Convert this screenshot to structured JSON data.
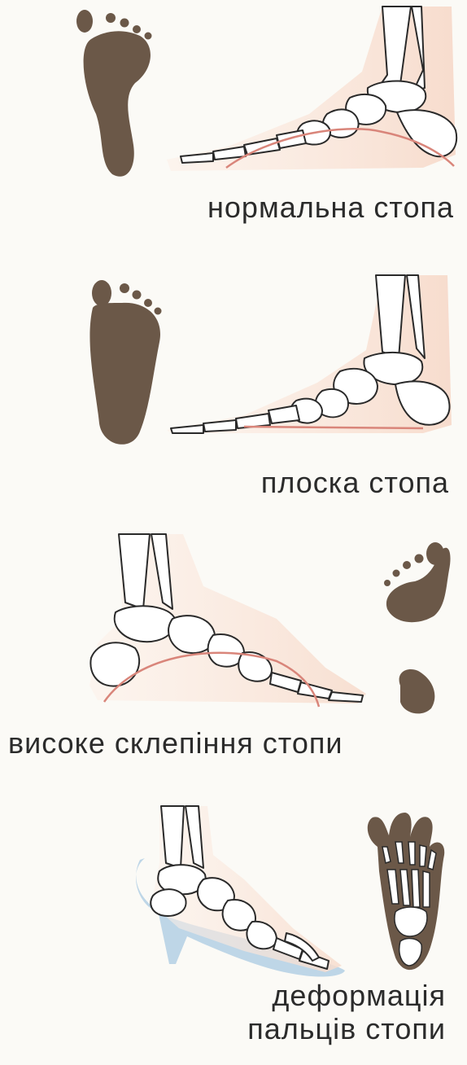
{
  "captions": {
    "normal_foot": "нормальна стопа",
    "flat_foot": "плоска стопа",
    "high_arch": "високе склепіння стопи",
    "toe_deformation_line1": "деформація",
    "toe_deformation_line2": "пальців стопи"
  },
  "colors": {
    "footprint": "#6b5848",
    "bone_outline": "#2a2a2a",
    "bone_fill": "#ffffff",
    "arch_line": "#d9857a",
    "skin_tint": "#f7dccd",
    "shoe": "#a9c9e2"
  }
}
